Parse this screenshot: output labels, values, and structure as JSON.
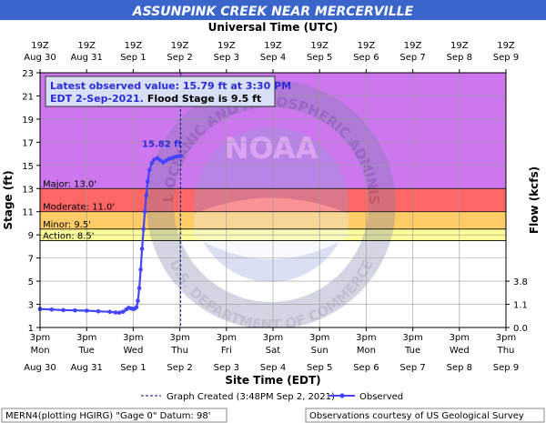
{
  "header": {
    "title": "ASSUNPINK CREEK NEAR MERCERVILLE",
    "top_axis_title": "Universal Time (UTC)"
  },
  "chart_data": {
    "type": "line",
    "x_ticks_utc": [
      {
        "time": "19Z",
        "date": "Aug 30"
      },
      {
        "time": "19Z",
        "date": "Aug 31"
      },
      {
        "time": "19Z",
        "date": "Sep 1"
      },
      {
        "time": "19Z",
        "date": "Sep 2"
      },
      {
        "time": "19Z",
        "date": "Sep 3"
      },
      {
        "time": "19Z",
        "date": "Sep 4"
      },
      {
        "time": "19Z",
        "date": "Sep 5"
      },
      {
        "time": "19Z",
        "date": "Sep 6"
      },
      {
        "time": "19Z",
        "date": "Sep 7"
      },
      {
        "time": "19Z",
        "date": "Sep 8"
      },
      {
        "time": "19Z",
        "date": "Sep 9"
      }
    ],
    "x_ticks_local": [
      {
        "time": "3pm",
        "day": "Mon",
        "date": "Aug 30"
      },
      {
        "time": "3pm",
        "day": "Tue",
        "date": "Aug 31"
      },
      {
        "time": "3pm",
        "day": "Wed",
        "date": "Sep 1"
      },
      {
        "time": "3pm",
        "day": "Thu",
        "date": "Sep 2"
      },
      {
        "time": "3pm",
        "day": "Fri",
        "date": "Sep 3"
      },
      {
        "time": "3pm",
        "day": "Sat",
        "date": "Sep 4"
      },
      {
        "time": "3pm",
        "day": "Sun",
        "date": "Sep 5"
      },
      {
        "time": "3pm",
        "day": "Mon",
        "date": "Sep 6"
      },
      {
        "time": "3pm",
        "day": "Tue",
        "date": "Sep 7"
      },
      {
        "time": "3pm",
        "day": "Wed",
        "date": "Sep 8"
      },
      {
        "time": "3pm",
        "day": "Thu",
        "date": "Sep 9"
      }
    ],
    "xlabel": "Site Time (EDT)",
    "ylabel": "Stage (ft)",
    "y2label": "Flow (kcfs)",
    "ylim": [
      1,
      23
    ],
    "y_ticks": [
      1,
      3,
      5,
      7,
      9,
      11,
      13,
      15,
      17,
      19,
      21,
      23
    ],
    "y2_ticks": [
      {
        "stage": 1,
        "label": "0.0"
      },
      {
        "stage": 3,
        "label": "1.1"
      },
      {
        "stage": 5,
        "label": "3.8"
      }
    ],
    "flood_categories": [
      {
        "name": "Action",
        "label": "Action: 8.5'",
        "from": 8.5,
        "to": 9.5,
        "color": "#ffff99"
      },
      {
        "name": "Minor",
        "label": "Minor: 9.5'",
        "from": 9.5,
        "to": 11,
        "color": "#ffcc66"
      },
      {
        "name": "Moderate",
        "label": "Moderate: 11.0'",
        "from": 11,
        "to": 13,
        "color": "#ff6666"
      },
      {
        "name": "Major",
        "label": "Major: 13.0'",
        "from": 13,
        "to": 23,
        "color": "#cc77ee"
      }
    ],
    "latest_observed": {
      "line1": "Latest observed value: 15.79 ft at 3:30 PM",
      "line2": "EDT 2-Sep-2021.",
      "line2b": "Flood Stage is 9.5 ft"
    },
    "peak_label": "15.82 ft",
    "peak_value": 15.82,
    "graph_created_day": 3.015,
    "series": [
      {
        "name": "Observed",
        "color": "#4444ff",
        "points": [
          [
            0.0,
            2.6
          ],
          [
            0.25,
            2.55
          ],
          [
            0.5,
            2.5
          ],
          [
            0.75,
            2.48
          ],
          [
            1.0,
            2.45
          ],
          [
            1.25,
            2.4
          ],
          [
            1.5,
            2.35
          ],
          [
            1.62,
            2.3
          ],
          [
            1.7,
            2.28
          ],
          [
            1.78,
            2.35
          ],
          [
            1.85,
            2.55
          ],
          [
            1.9,
            2.7
          ],
          [
            1.95,
            2.65
          ],
          [
            2.0,
            2.6
          ],
          [
            2.03,
            2.62
          ],
          [
            2.07,
            2.75
          ],
          [
            2.1,
            3.3
          ],
          [
            2.13,
            4.4
          ],
          [
            2.16,
            6.0
          ],
          [
            2.19,
            7.8
          ],
          [
            2.22,
            9.5
          ],
          [
            2.25,
            11.0
          ],
          [
            2.28,
            12.4
          ],
          [
            2.31,
            13.6
          ],
          [
            2.35,
            14.6
          ],
          [
            2.4,
            15.2
          ],
          [
            2.45,
            15.5
          ],
          [
            2.52,
            15.62
          ],
          [
            2.58,
            15.45
          ],
          [
            2.64,
            15.25
          ],
          [
            2.7,
            15.4
          ],
          [
            2.76,
            15.55
          ],
          [
            2.82,
            15.62
          ],
          [
            2.88,
            15.7
          ],
          [
            2.94,
            15.78
          ],
          [
            3.0,
            15.79
          ],
          [
            3.02,
            15.82
          ]
        ]
      }
    ],
    "legend": {
      "created_label": "Graph Created (3:48PM Sep 2, 2021)",
      "observed_label": "Observed"
    }
  },
  "footer": {
    "left": "MERN4(plotting HGIRG) \"Gage 0\" Datum: 98'",
    "right": "Observations courtesy of US Geological Survey"
  },
  "watermark": {
    "center_text": "NOAA",
    "ring_text": "NATIONAL OCEANIC AND ATMOSPHERIC ADMINISTRATION",
    "bottom_text": "U.S. DEPARTMENT OF COMMERCE"
  }
}
